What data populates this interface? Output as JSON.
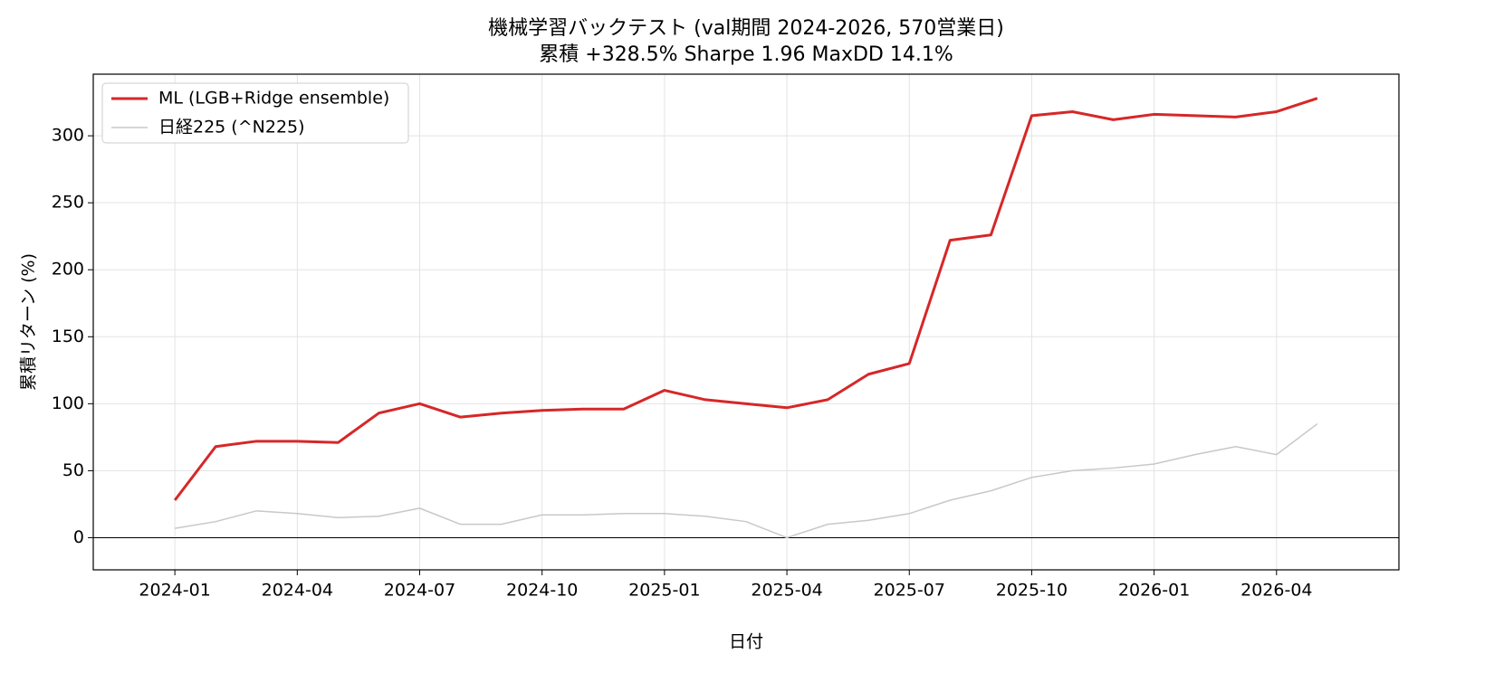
{
  "chart_data": {
    "type": "line",
    "title": "機械学習バックテスト (val期間 2024-2026, 570営業日)",
    "subtitle": "累積 +328.5%  Sharpe 1.96  MaxDD 14.1%",
    "xlabel": "日付",
    "ylabel": "累積リターン (%)",
    "x": [
      "2024-01",
      "2024-02",
      "2024-03",
      "2024-04",
      "2024-05",
      "2024-06",
      "2024-07",
      "2024-08",
      "2024-09",
      "2024-10",
      "2024-11",
      "2024-12",
      "2025-01",
      "2025-02",
      "2025-03",
      "2025-04",
      "2025-05",
      "2025-06",
      "2025-07",
      "2025-08",
      "2025-09",
      "2025-10",
      "2025-11",
      "2025-12",
      "2026-01",
      "2026-02",
      "2026-03",
      "2026-04",
      "2026-05"
    ],
    "series": [
      {
        "name": "ML (LGB+Ridge ensemble)",
        "color": "#d62728",
        "width": 3,
        "values": [
          28,
          68,
          72,
          72,
          71,
          93,
          100,
          90,
          93,
          95,
          96,
          96,
          110,
          103,
          100,
          97,
          103,
          122,
          130,
          222,
          226,
          315,
          318,
          312,
          316,
          315,
          314,
          318,
          328
        ]
      },
      {
        "name": "日経225 (^N225)",
        "color": "#c8c8c8",
        "width": 1.5,
        "values": [
          7,
          12,
          20,
          18,
          15,
          16,
          22,
          10,
          10,
          17,
          17,
          18,
          18,
          16,
          12,
          0,
          10,
          13,
          18,
          28,
          35,
          45,
          50,
          52,
          55,
          62,
          68,
          62,
          85
        ]
      }
    ],
    "xlim": [
      "2023-11",
      "2026-07"
    ],
    "xticks": [
      "2024-01",
      "2024-04",
      "2024-07",
      "2024-10",
      "2025-01",
      "2025-04",
      "2025-07",
      "2025-10",
      "2026-01",
      "2026-04"
    ],
    "ylim": [
      -24,
      346
    ],
    "yticks": [
      0,
      50,
      100,
      150,
      200,
      250,
      300
    ],
    "reference_line": 0,
    "grid": true,
    "legend": "upper left"
  }
}
